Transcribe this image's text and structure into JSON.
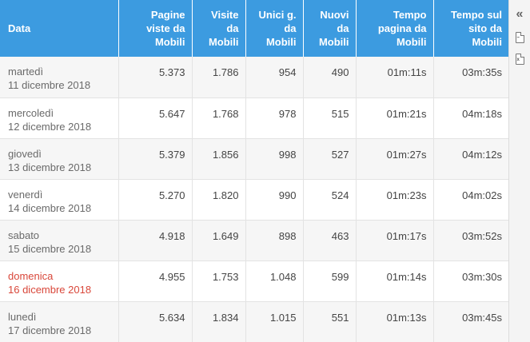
{
  "table": {
    "headers": [
      {
        "line1": "Data",
        "line2": "",
        "line3": ""
      },
      {
        "line1": "Pagine",
        "line2": "viste da",
        "line3": "Mobili"
      },
      {
        "line1": "Visite",
        "line2": "da",
        "line3": "Mobili"
      },
      {
        "line1": "Unici g.",
        "line2": "da",
        "line3": "Mobili"
      },
      {
        "line1": "Nuovi",
        "line2": "da",
        "line3": "Mobili"
      },
      {
        "line1": "Tempo",
        "line2": "pagina da",
        "line3": "Mobili"
      },
      {
        "line1": "Tempo sul",
        "line2": "sito da Mobili",
        "line3": ""
      }
    ],
    "rows": [
      {
        "day": "martedì",
        "date": "11 dicembre 2018",
        "pagine": "5.373",
        "visite": "1.786",
        "unici": "954",
        "nuovi": "490",
        "tempo_pagina": "01m:11s",
        "tempo_sito": "03m:35s"
      },
      {
        "day": "mercoledì",
        "date": "12 dicembre 2018",
        "pagine": "5.647",
        "visite": "1.768",
        "unici": "978",
        "nuovi": "515",
        "tempo_pagina": "01m:21s",
        "tempo_sito": "04m:18s"
      },
      {
        "day": "giovedì",
        "date": "13 dicembre 2018",
        "pagine": "5.379",
        "visite": "1.856",
        "unici": "998",
        "nuovi": "527",
        "tempo_pagina": "01m:27s",
        "tempo_sito": "04m:12s"
      },
      {
        "day": "venerdì",
        "date": "14 dicembre 2018",
        "pagine": "5.270",
        "visite": "1.820",
        "unici": "990",
        "nuovi": "524",
        "tempo_pagina": "01m:23s",
        "tempo_sito": "04m:02s"
      },
      {
        "day": "sabato",
        "date": "15 dicembre 2018",
        "pagine": "4.918",
        "visite": "1.649",
        "unici": "898",
        "nuovi": "463",
        "tempo_pagina": "01m:17s",
        "tempo_sito": "03m:52s"
      },
      {
        "day": "domenica",
        "date": "16 dicembre 2018",
        "pagine": "4.955",
        "visite": "1.753",
        "unici": "1.048",
        "nuovi": "599",
        "tempo_pagina": "01m:14s",
        "tempo_sito": "03m:30s"
      },
      {
        "day": "lunedì",
        "date": "17 dicembre 2018",
        "pagine": "5.634",
        "visite": "1.834",
        "unici": "1.015",
        "nuovi": "551",
        "tempo_pagina": "01m:13s",
        "tempo_sito": "03m:45s"
      }
    ]
  },
  "toolbar": {
    "collapse_icon": "double-chevron-left-icon",
    "pdf_icon": "pdf-file-icon",
    "excel_icon": "excel-file-icon"
  },
  "colors": {
    "header_bg": "#3c9be0",
    "holiday_text": "#d9473a"
  }
}
